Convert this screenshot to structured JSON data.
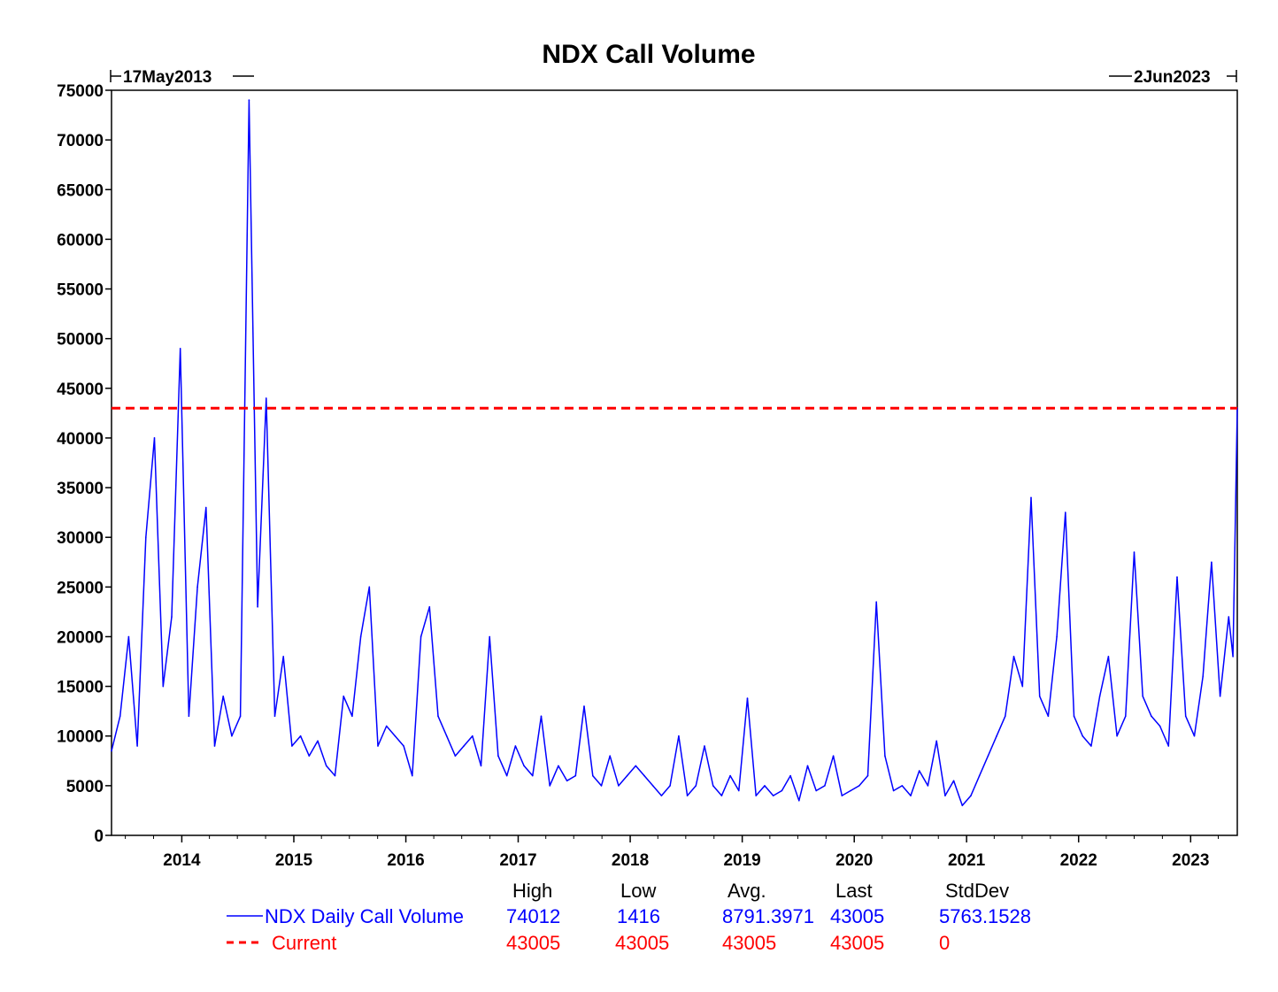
{
  "chart_data": {
    "type": "line",
    "title": "NDX Call Volume",
    "xlabel": "",
    "ylabel": "",
    "start_label": "17May2013",
    "end_label": "2Jun2023",
    "x_range": [
      "2013-05-17",
      "2023-06-02"
    ],
    "ylim": [
      0,
      75000
    ],
    "yticks": [
      0,
      5000,
      10000,
      15000,
      20000,
      25000,
      30000,
      35000,
      40000,
      45000,
      50000,
      55000,
      60000,
      65000,
      70000,
      75000
    ],
    "xtick_labels": [
      "2014",
      "2015",
      "2016",
      "2017",
      "2018",
      "2019",
      "2020",
      "2021",
      "2022",
      "2023"
    ],
    "grid": false,
    "legend_position": "bottom",
    "series": [
      {
        "name": "NDX Daily Call Volume",
        "color": "#0000ff",
        "style": "solid",
        "x": [
          "2013-05-17",
          "2013-06-14",
          "2013-07-12",
          "2013-08-09",
          "2013-09-06",
          "2013-10-04",
          "2013-11-01",
          "2013-11-29",
          "2013-12-27",
          "2014-01-24",
          "2014-02-21",
          "2014-03-21",
          "2014-04-18",
          "2014-05-16",
          "2014-06-13",
          "2014-07-11",
          "2014-08-08",
          "2014-09-05",
          "2014-10-03",
          "2014-10-31",
          "2014-11-28",
          "2014-12-26",
          "2015-01-23",
          "2015-02-20",
          "2015-03-20",
          "2015-04-17",
          "2015-05-15",
          "2015-06-12",
          "2015-07-10",
          "2015-08-07",
          "2015-09-04",
          "2015-10-02",
          "2015-10-30",
          "2015-11-27",
          "2015-12-25",
          "2016-01-22",
          "2016-02-19",
          "2016-03-18",
          "2016-04-15",
          "2016-05-13",
          "2016-06-10",
          "2016-07-08",
          "2016-08-05",
          "2016-09-02",
          "2016-09-30",
          "2016-10-28",
          "2016-11-25",
          "2016-12-23",
          "2017-01-20",
          "2017-02-17",
          "2017-03-17",
          "2017-04-14",
          "2017-05-12",
          "2017-06-09",
          "2017-07-07",
          "2017-08-04",
          "2017-09-01",
          "2017-09-29",
          "2017-10-27",
          "2017-11-24",
          "2017-12-22",
          "2018-01-19",
          "2018-02-16",
          "2018-03-16",
          "2018-04-13",
          "2018-05-11",
          "2018-06-08",
          "2018-07-06",
          "2018-08-03",
          "2018-08-31",
          "2018-09-28",
          "2018-10-26",
          "2018-11-23",
          "2018-12-21",
          "2019-01-18",
          "2019-02-15",
          "2019-03-15",
          "2019-04-12",
          "2019-05-10",
          "2019-06-07",
          "2019-07-05",
          "2019-08-02",
          "2019-08-30",
          "2019-09-27",
          "2019-10-25",
          "2019-11-22",
          "2019-12-20",
          "2020-01-17",
          "2020-02-14",
          "2020-03-13",
          "2020-04-10",
          "2020-05-08",
          "2020-06-05",
          "2020-07-03",
          "2020-07-31",
          "2020-08-28",
          "2020-09-25",
          "2020-10-23",
          "2020-11-20",
          "2020-12-18",
          "2021-01-15",
          "2021-02-12",
          "2021-03-12",
          "2021-04-09",
          "2021-05-07",
          "2021-06-04",
          "2021-07-02",
          "2021-07-30",
          "2021-08-27",
          "2021-09-24",
          "2021-10-22",
          "2021-11-19",
          "2021-12-17",
          "2022-01-14",
          "2022-02-11",
          "2022-03-11",
          "2022-04-08",
          "2022-05-06",
          "2022-06-03",
          "2022-07-01",
          "2022-07-29",
          "2022-08-26",
          "2022-09-23",
          "2022-10-21",
          "2022-11-18",
          "2022-12-16",
          "2023-01-13",
          "2023-02-10",
          "2023-03-10",
          "2023-04-07",
          "2023-05-05",
          "2023-05-19",
          "2023-06-02"
        ],
        "y": [
          8500,
          12000,
          20000,
          9000,
          30000,
          40000,
          15000,
          22000,
          49000,
          12000,
          25000,
          33000,
          9000,
          14000,
          10000,
          12000,
          74012,
          23000,
          44000,
          12000,
          18000,
          9000,
          10000,
          8000,
          9500,
          7000,
          6000,
          14000,
          12000,
          20000,
          25000,
          9000,
          11000,
          10000,
          9000,
          6000,
          20000,
          23000,
          12000,
          10000,
          8000,
          9000,
          10000,
          7000,
          20000,
          8000,
          6000,
          9000,
          7000,
          6000,
          12000,
          5000,
          7000,
          5500,
          6000,
          13000,
          6000,
          5000,
          8000,
          5000,
          6000,
          7000,
          6000,
          5000,
          4000,
          5000,
          10000,
          4000,
          5000,
          9000,
          5000,
          4000,
          6000,
          4500,
          13800,
          4000,
          5000,
          4000,
          4500,
          6000,
          3500,
          7000,
          4500,
          5000,
          8000,
          4000,
          4500,
          5000,
          6000,
          23500,
          8000,
          4500,
          5000,
          4000,
          6500,
          5000,
          9500,
          4000,
          5500,
          3000,
          4000,
          6000,
          8000,
          10000,
          12000,
          18000,
          15000,
          34000,
          14000,
          12000,
          20000,
          32500,
          12000,
          10000,
          9000,
          14000,
          18000,
          10000,
          12000,
          28500,
          14000,
          12000,
          11000,
          9000,
          26000,
          12000,
          10000,
          16000,
          27500,
          14000,
          22000,
          18000,
          43005
        ]
      },
      {
        "name": "Current",
        "color": "#ff0000",
        "style": "dashed",
        "value": 43005
      }
    ],
    "stats": {
      "headers": [
        "High",
        "Low",
        "Avg.",
        "Last",
        "StdDev"
      ],
      "rows": [
        {
          "name": "NDX Daily Call Volume",
          "values": [
            "74012",
            "1416",
            "8791.3971",
            "43005",
            "5763.1528"
          ]
        },
        {
          "name": "Current",
          "values": [
            "43005",
            "43005",
            "43005",
            "43005",
            "0"
          ]
        }
      ]
    }
  }
}
